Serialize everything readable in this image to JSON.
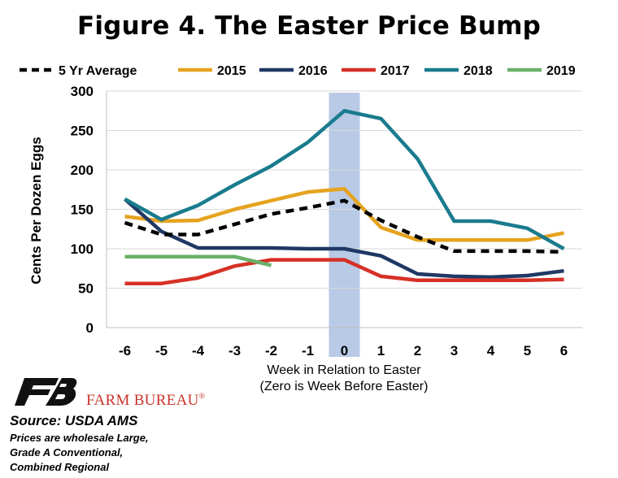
{
  "title": "Figure 4. The Easter Price Bump",
  "logo": {
    "wordmark": "FARM BUREAU",
    "registered": "®",
    "icon": "farm-bureau-logo"
  },
  "source": "Source: USDA AMS",
  "notes": [
    "Prices are wholesale Large,",
    "Grade A Conventional,",
    "Combined Regional"
  ],
  "chart_data": {
    "type": "line",
    "title": "Figure 4. The Easter Price Bump",
    "xlabel_lines": [
      "Week in Relation to Easter",
      "(Zero is Week Before Easter)"
    ],
    "ylabel": "Cents Per Dozen Eggs",
    "x": [
      -6,
      -5,
      -4,
      -3,
      -2,
      -1,
      0,
      1,
      2,
      3,
      4,
      5,
      6
    ],
    "x_tick_labels": [
      "-6",
      "-5",
      "-4",
      "-3",
      "-2",
      "-1",
      "0",
      "1",
      "2",
      "3",
      "4",
      "5",
      "6"
    ],
    "ylim": [
      0,
      300
    ],
    "y_ticks": [
      0,
      50,
      100,
      150,
      200,
      250,
      300
    ],
    "y_tick_labels": [
      "0",
      "50",
      "100",
      "150",
      "200",
      "250",
      "300"
    ],
    "grid": "horizontal",
    "legend_position": "top",
    "highlight": {
      "x": 0,
      "color": "#b8cae6"
    },
    "series": [
      {
        "name": "5 Yr Average",
        "color": "#000000",
        "dashed": true,
        "values": [
          133,
          118,
          118,
          131,
          144,
          152,
          161,
          136,
          115,
          97,
          97,
          97,
          96
        ]
      },
      {
        "name": "2015",
        "color": "#e5a31e",
        "dashed": false,
        "values": [
          141,
          135,
          136,
          150,
          161,
          172,
          176,
          127,
          111,
          111,
          111,
          111,
          120
        ]
      },
      {
        "name": "2016",
        "color": "#1f3864",
        "dashed": false,
        "values": [
          163,
          122,
          101,
          101,
          101,
          100,
          100,
          91,
          68,
          65,
          64,
          66,
          72
        ]
      },
      {
        "name": "2017",
        "color": "#d63026",
        "dashed": false,
        "values": [
          56,
          56,
          63,
          78,
          86,
          86,
          86,
          65,
          60,
          60,
          60,
          60,
          61
        ]
      },
      {
        "name": "2018",
        "color": "#1a7b8e",
        "dashed": false,
        "values": [
          163,
          137,
          155,
          181,
          205,
          235,
          275,
          265,
          214,
          135,
          135,
          126,
          100
        ]
      },
      {
        "name": "2019",
        "color": "#6ab06a",
        "dashed": false,
        "values": [
          90,
          90,
          90,
          90,
          79,
          null,
          null,
          null,
          null,
          null,
          null,
          null,
          null
        ]
      }
    ]
  }
}
